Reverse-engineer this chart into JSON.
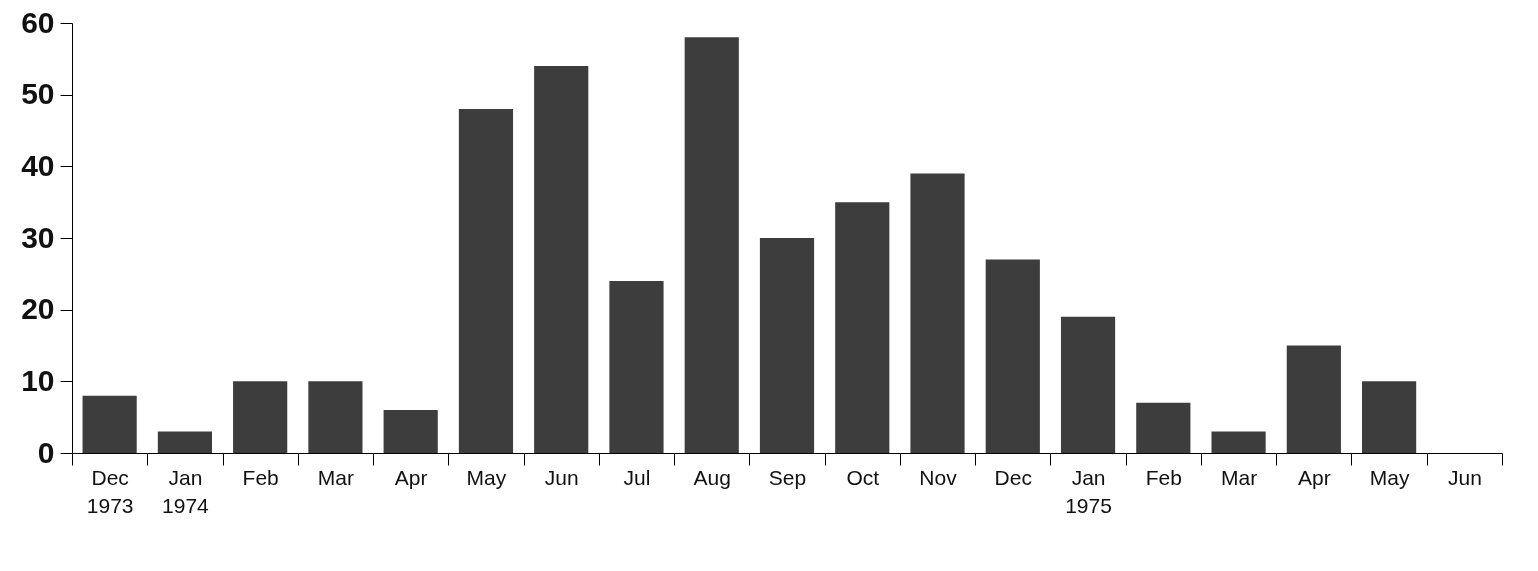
{
  "chart_data": {
    "type": "bar",
    "categories": [
      "Dec\n1973",
      "Jan\n1974",
      "Feb",
      "Mar",
      "Apr",
      "May",
      "Jun",
      "Jul",
      "Aug",
      "Sep",
      "Oct",
      "Nov",
      "Dec",
      "Jan\n1975",
      "Feb",
      "Mar",
      "Apr",
      "May",
      "Jun"
    ],
    "values": [
      8,
      3,
      10,
      10,
      6,
      48,
      54,
      24,
      58,
      30,
      35,
      39,
      27,
      19,
      7,
      3,
      15,
      10,
      null
    ],
    "color": "#3d3d3d",
    "ylim": [
      0,
      60
    ],
    "yticks": [
      0,
      10,
      20,
      30,
      40,
      50,
      60
    ],
    "grid": false
  }
}
